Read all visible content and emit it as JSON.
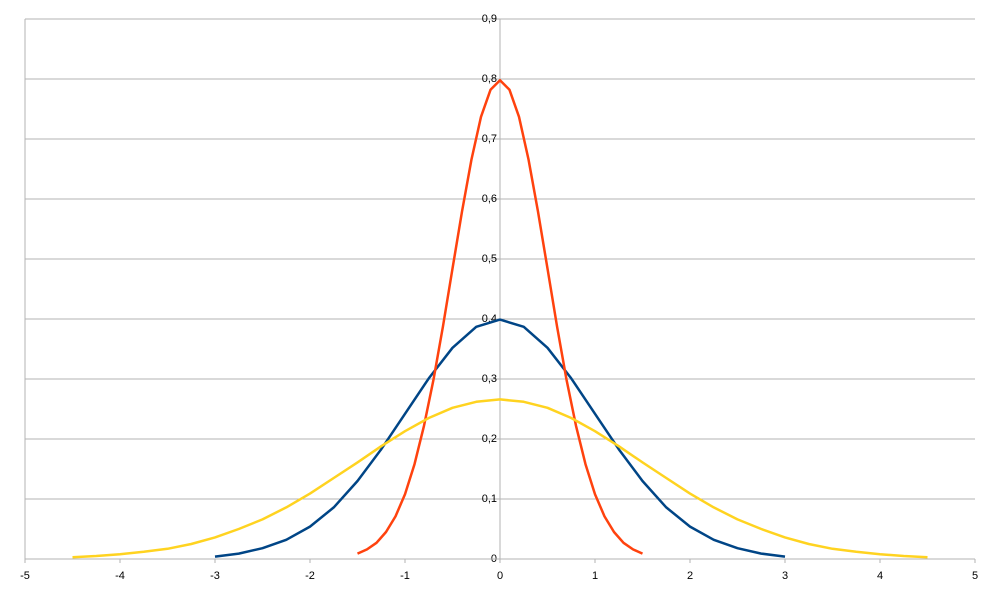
{
  "chart_data": {
    "type": "line",
    "xlim": [
      -5,
      5
    ],
    "ylim": [
      0,
      0.9
    ],
    "xticks": [
      -5,
      -4,
      -3,
      -2,
      -1,
      0,
      1,
      2,
      3,
      4,
      5
    ],
    "yticks": [
      0,
      {
        "value": 0.1,
        "label": "0,1"
      },
      {
        "value": 0.2,
        "label": "0,2"
      },
      {
        "value": 0.3,
        "label": "0,3"
      },
      {
        "value": 0.4,
        "label": "0,4"
      },
      {
        "value": 0.5,
        "label": "0,5"
      },
      {
        "value": 0.6,
        "label": "0,6"
      },
      {
        "value": 0.7,
        "label": "0,7"
      },
      {
        "value": 0.8,
        "label": "0,8"
      },
      {
        "value": 0.9,
        "label": "0,9"
      }
    ],
    "grid": true,
    "series": [
      {
        "color": "#004586",
        "x": [
          -3,
          -2.75,
          -2.5,
          -2.25,
          -2,
          -1.75,
          -1.5,
          -1.25,
          -1,
          -0.75,
          -0.5,
          -0.25,
          0,
          0.25,
          0.5,
          0.75,
          1,
          1.25,
          1.5,
          1.75,
          2,
          2.25,
          2.5,
          2.75,
          3
        ],
        "values": [
          0.004,
          0.009,
          0.018,
          0.032,
          0.054,
          0.086,
          0.13,
          0.183,
          0.242,
          0.301,
          0.352,
          0.387,
          0.399,
          0.387,
          0.352,
          0.301,
          0.242,
          0.183,
          0.13,
          0.086,
          0.054,
          0.032,
          0.018,
          0.009,
          0.004
        ]
      },
      {
        "color": "#ff420e",
        "x": [
          -1.5,
          -1.4,
          -1.3,
          -1.2,
          -1.1,
          -1,
          -0.9,
          -0.8,
          -0.7,
          -0.6,
          -0.5,
          -0.4,
          -0.3,
          -0.2,
          -0.1,
          0,
          0.1,
          0.2,
          0.3,
          0.4,
          0.5,
          0.6,
          0.7,
          0.8,
          0.9,
          1,
          1.1,
          1.2,
          1.3,
          1.4,
          1.5
        ],
        "values": [
          0.009,
          0.016,
          0.027,
          0.045,
          0.071,
          0.108,
          0.158,
          0.222,
          0.299,
          0.388,
          0.484,
          0.579,
          0.666,
          0.737,
          0.782,
          0.798,
          0.782,
          0.737,
          0.666,
          0.579,
          0.484,
          0.388,
          0.299,
          0.222,
          0.158,
          0.108,
          0.071,
          0.045,
          0.027,
          0.016,
          0.009
        ]
      },
      {
        "color": "#ffd320",
        "x": [
          -4.5,
          -4.25,
          -4,
          -3.75,
          -3.5,
          -3.25,
          -3,
          -2.75,
          -2.5,
          -2.25,
          -2,
          -1.75,
          -1.5,
          -1.25,
          -1,
          -0.75,
          -0.5,
          -0.25,
          0,
          0.25,
          0.5,
          0.75,
          1,
          1.25,
          1.5,
          1.75,
          2,
          2.25,
          2.5,
          2.75,
          3,
          3.25,
          3.5,
          3.75,
          4,
          4.25,
          4.5
        ],
        "values": [
          0.003,
          0.005,
          0.008,
          0.012,
          0.017,
          0.025,
          0.036,
          0.05,
          0.066,
          0.086,
          0.109,
          0.135,
          0.161,
          0.188,
          0.213,
          0.235,
          0.252,
          0.262,
          0.266,
          0.262,
          0.252,
          0.235,
          0.213,
          0.188,
          0.161,
          0.135,
          0.109,
          0.086,
          0.066,
          0.05,
          0.036,
          0.025,
          0.017,
          0.012,
          0.008,
          0.005,
          0.003
        ]
      }
    ]
  }
}
